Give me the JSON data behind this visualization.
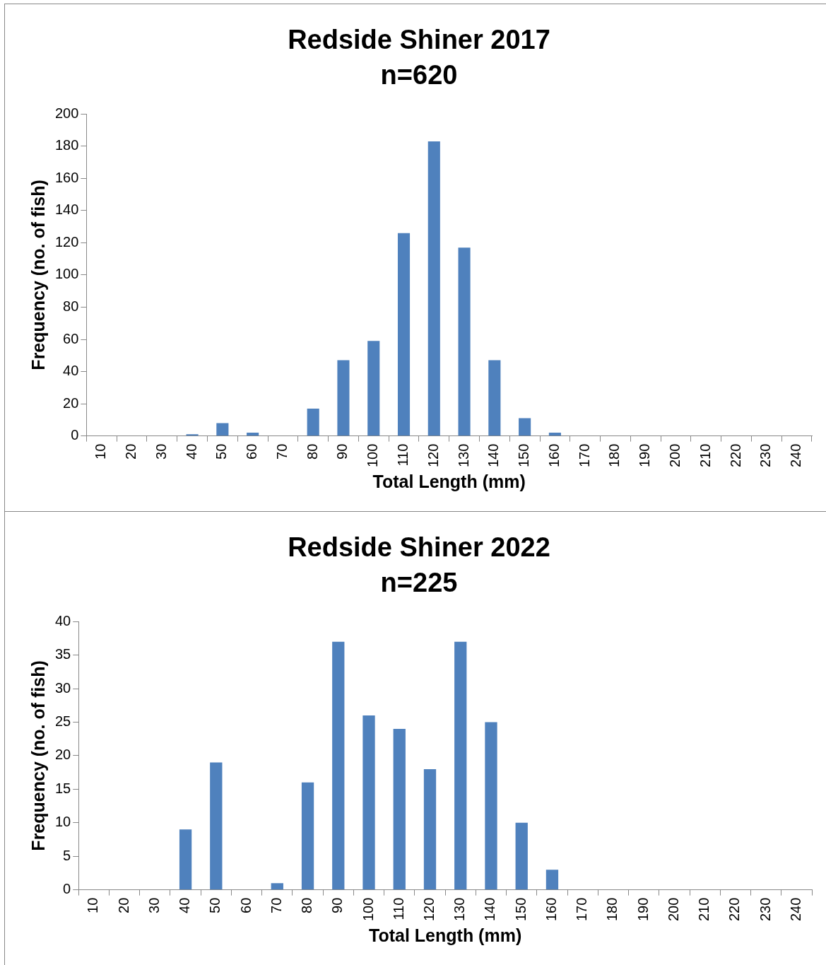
{
  "chart_data": [
    {
      "type": "bar",
      "title": "Redside Shiner 2017",
      "subtitle": "n=620",
      "xlabel": "Total Length (mm)",
      "ylabel": "Frequency (no. of fish)",
      "categories": [
        "10",
        "20",
        "30",
        "40",
        "50",
        "60",
        "70",
        "80",
        "90",
        "100",
        "110",
        "120",
        "130",
        "140",
        "150",
        "160",
        "170",
        "180",
        "190",
        "200",
        "210",
        "220",
        "230",
        "240"
      ],
      "values": [
        0,
        0,
        0,
        1,
        8,
        2,
        0,
        17,
        47,
        59,
        126,
        183,
        117,
        47,
        11,
        2,
        0,
        0,
        0,
        0,
        0,
        0,
        0,
        0
      ],
      "color": "#4f81bd",
      "ylim": [
        0,
        200
      ],
      "yticks": [
        0,
        20,
        40,
        60,
        80,
        100,
        120,
        140,
        160,
        180,
        200
      ],
      "grid": false,
      "legend": false
    },
    {
      "type": "bar",
      "title": "Redside Shiner 2022",
      "subtitle": "n=225",
      "xlabel": "Total Length (mm)",
      "ylabel": "Frequency (no. of fish)",
      "categories": [
        "10",
        "20",
        "30",
        "40",
        "50",
        "60",
        "70",
        "80",
        "90",
        "100",
        "110",
        "120",
        "130",
        "140",
        "150",
        "160",
        "170",
        "180",
        "190",
        "200",
        "210",
        "220",
        "230",
        "240"
      ],
      "values": [
        0,
        0,
        0,
        9,
        19,
        0,
        1,
        16,
        37,
        26,
        24,
        18,
        37,
        25,
        10,
        3,
        0,
        0,
        0,
        0,
        0,
        0,
        0,
        0
      ],
      "color": "#4f81bd",
      "ylim": [
        0,
        40
      ],
      "yticks": [
        0,
        5,
        10,
        15,
        20,
        25,
        30,
        35,
        40
      ],
      "grid": false,
      "legend": false
    }
  ]
}
